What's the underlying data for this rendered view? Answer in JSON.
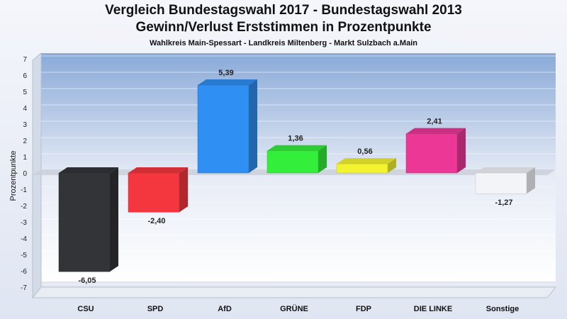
{
  "chart_data": {
    "type": "bar",
    "title": "Vergleich Bundestagswahl 2017 - Bundestagswahl 2013",
    "subtitle": "Gewinn/Verlust Erststimmen in Prozentpunkte",
    "subtitle2": "Wahlkreis Main-Spessart - Landkreis Miltenberg - Markt Sulzbach a.Main",
    "ylabel": "Prozentpunkte",
    "ylim": [
      -7,
      7
    ],
    "yticks": [
      "7",
      "6",
      "5",
      "4",
      "3",
      "2",
      "1",
      "0",
      "-1",
      "-2",
      "-3",
      "-4",
      "-5",
      "-6",
      "-7"
    ],
    "categories": [
      "CSU",
      "SPD",
      "AfD",
      "GRÜNE",
      "FDP",
      "DIE LINKE",
      "Sonstige"
    ],
    "values": [
      -6.05,
      -2.4,
      5.39,
      1.36,
      0.56,
      2.41,
      -1.27
    ],
    "value_labels": [
      "-6,05",
      "-2,40",
      "5,39",
      "1,36",
      "0,56",
      "2,41",
      "-1,27"
    ],
    "colors": [
      "#333438",
      "#f4363f",
      "#2f8ff2",
      "#33ee3a",
      "#f3f331",
      "#ec3797",
      "#f2f4f8"
    ],
    "grid": true
  }
}
